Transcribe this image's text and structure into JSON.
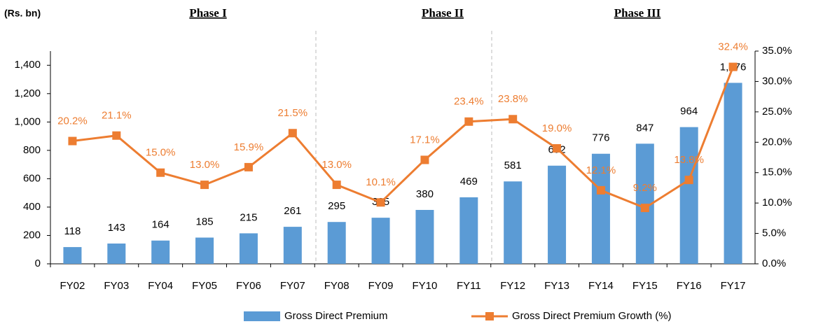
{
  "chart_data": {
    "type": "bar_line",
    "unit_label": "(Rs. bn)",
    "annotations": [
      "Phase I",
      "Phase II",
      "Phase III"
    ],
    "categories": [
      "FY02",
      "FY03",
      "FY04",
      "FY05",
      "FY06",
      "FY07",
      "FY08",
      "FY09",
      "FY10",
      "FY11",
      "FY12",
      "FY13",
      "FY14",
      "FY15",
      "FY16",
      "FY17"
    ],
    "series": [
      {
        "name": "Gross Direct Premium",
        "type": "bar",
        "color": "#5b9bd5",
        "axis": "y",
        "values": [
          118,
          143,
          164,
          185,
          215,
          261,
          295,
          325,
          380,
          469,
          581,
          692,
          776,
          847,
          964,
          1276
        ],
        "value_labels": [
          "118",
          "143",
          "164",
          "185",
          "215",
          "261",
          "295",
          "325",
          "380",
          "469",
          "581",
          "692",
          "776",
          "847",
          "964",
          "1,276"
        ]
      },
      {
        "name": "Gross Direct Premium Growth (%)",
        "type": "line",
        "color": "#ed7d31",
        "axis": "y2",
        "values": [
          20.2,
          21.1,
          15.0,
          13.0,
          15.9,
          21.5,
          13.0,
          10.1,
          17.1,
          23.4,
          23.8,
          19.0,
          12.1,
          9.2,
          13.8,
          32.4
        ],
        "value_labels": [
          "20.2%",
          "21.1%",
          "15.0%",
          "13.0%",
          "15.9%",
          "21.5%",
          "13.0%",
          "10.1%",
          "17.1%",
          "23.4%",
          "23.8%",
          "19.0%",
          "12.1%",
          "9.2%",
          "13.8%",
          "32.4%"
        ]
      }
    ],
    "ylim": [
      0,
      1500
    ],
    "yticks": [
      0,
      200,
      400,
      600,
      800,
      {
        "value": 1000,
        "label": "1,000"
      },
      {
        "value": 1200,
        "label": "1,200"
      },
      {
        "value": 1400,
        "label": "1,400"
      }
    ],
    "y2lim": [
      0,
      35
    ],
    "y2ticks": [
      {
        "value": 0,
        "label": "0.0%"
      },
      {
        "value": 5,
        "label": "5.0%"
      },
      {
        "value": 10,
        "label": "10.0%"
      },
      {
        "value": 15,
        "label": "15.0%"
      },
      {
        "value": 20,
        "label": "20.0%"
      },
      {
        "value": 25,
        "label": "25.0%"
      },
      {
        "value": 30,
        "label": "30.0%"
      },
      {
        "value": 35,
        "label": "35.0%"
      }
    ],
    "grid": false
  }
}
